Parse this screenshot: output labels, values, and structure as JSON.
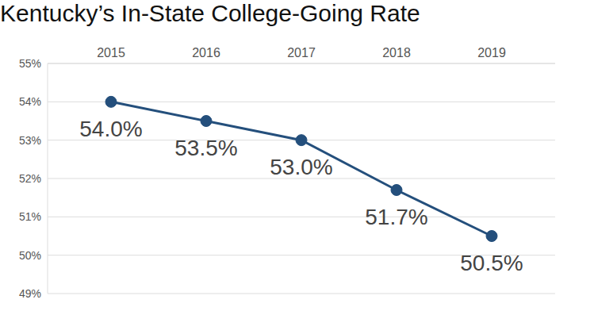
{
  "chart_data": {
    "type": "line",
    "title": "Kentucky’s In-State College-Going Rate",
    "categories": [
      "2015",
      "2016",
      "2017",
      "2018",
      "2019"
    ],
    "values": [
      54.0,
      53.5,
      53.0,
      51.7,
      50.5
    ],
    "value_labels": [
      "54.0%",
      "53.5%",
      "53.0%",
      "51.7%",
      "50.5%"
    ],
    "color": "#244f7c",
    "ylim": [
      49,
      55
    ],
    "yticks": [
      {
        "value": 49,
        "label": "49%"
      },
      {
        "value": 50,
        "label": "50%"
      },
      {
        "value": 51,
        "label": "51%"
      },
      {
        "value": 52,
        "label": "52%"
      },
      {
        "value": 53,
        "label": "53%"
      },
      {
        "value": 54,
        "label": "54%"
      },
      {
        "value": 55,
        "label": "55%"
      }
    ],
    "grid": true,
    "data_labels": true,
    "marker": "circle"
  }
}
